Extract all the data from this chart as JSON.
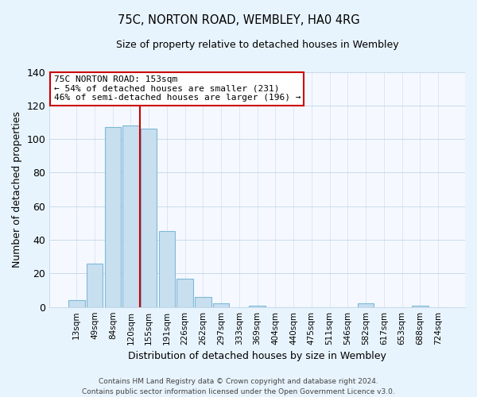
{
  "title": "75C, NORTON ROAD, WEMBLEY, HA0 4RG",
  "subtitle": "Size of property relative to detached houses in Wembley",
  "xlabel": "Distribution of detached houses by size in Wembley",
  "ylabel": "Number of detached properties",
  "bar_labels": [
    "13sqm",
    "49sqm",
    "84sqm",
    "120sqm",
    "155sqm",
    "191sqm",
    "226sqm",
    "262sqm",
    "297sqm",
    "333sqm",
    "369sqm",
    "404sqm",
    "440sqm",
    "475sqm",
    "511sqm",
    "546sqm",
    "582sqm",
    "617sqm",
    "653sqm",
    "688sqm",
    "724sqm"
  ],
  "bar_values": [
    4,
    26,
    107,
    108,
    106,
    45,
    17,
    6,
    2,
    0,
    1,
    0,
    0,
    0,
    0,
    0,
    2,
    0,
    0,
    1,
    0
  ],
  "bar_fill_color": "#c8dff0",
  "bar_edge_color": "#7fb8d8",
  "vline_x_index": 3.5,
  "vline_color": "#cc0000",
  "ylim": [
    0,
    140
  ],
  "yticks": [
    0,
    20,
    40,
    60,
    80,
    100,
    120,
    140
  ],
  "annotation_line1": "75C NORTON ROAD: 153sqm",
  "annotation_line2": "← 54% of detached houses are smaller (231)",
  "annotation_line3": "46% of semi-detached houses are larger (196) →",
  "footer_line1": "Contains HM Land Registry data © Crown copyright and database right 2024.",
  "footer_line2": "Contains public sector information licensed under the Open Government Licence v3.0.",
  "background_color": "#e8f4fd",
  "plot_background_color": "#f5f9ff",
  "grid_color": "#c8daea",
  "title_fontsize": 10.5,
  "subtitle_fontsize": 9
}
